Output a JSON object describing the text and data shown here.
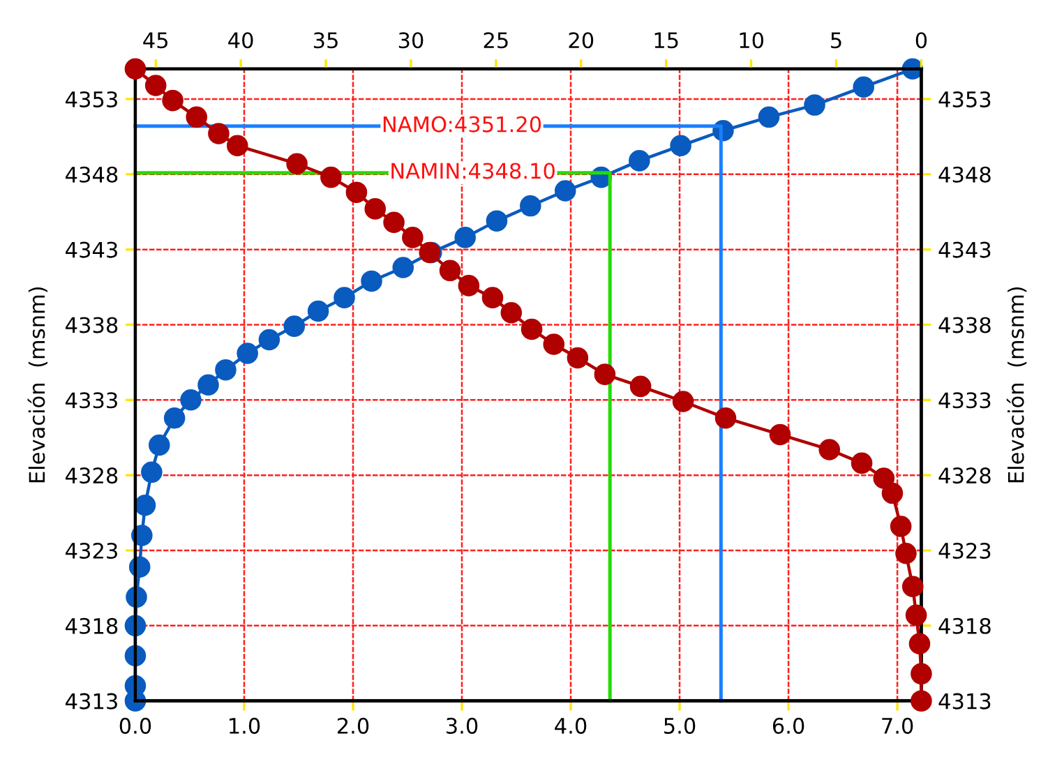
{
  "chart_data": {
    "type": "line",
    "ylabel": "Elevación  (msnm)",
    "y2label": "Elevación  (msnm)",
    "xlim": [
      0,
      7.22
    ],
    "xticks": [
      {
        "value": 0,
        "label": "0.0"
      },
      {
        "value": 1,
        "label": "1.0"
      },
      {
        "value": 2,
        "label": "2.0"
      },
      {
        "value": 3,
        "label": "3.0"
      },
      {
        "value": 4,
        "label": "4.0"
      },
      {
        "value": 5,
        "label": "5.0"
      },
      {
        "value": 6,
        "label": "6.0"
      },
      {
        "value": 7,
        "label": "7.0"
      }
    ],
    "x2lim": [
      46.2,
      0
    ],
    "x2ticks": [
      45,
      40,
      35,
      30,
      25,
      20,
      15,
      10,
      5,
      0
    ],
    "ylim": [
      4313,
      4355
    ],
    "yticks": [
      4313,
      4318,
      4323,
      4328,
      4333,
      4338,
      4343,
      4348,
      4353
    ],
    "y2lim": [
      4313,
      4355
    ],
    "y2ticks": [
      4313,
      4318,
      4323,
      4328,
      4333,
      4338,
      4343,
      4348,
      4353
    ],
    "grid": true,
    "marker": "circle",
    "line_style": "solid",
    "series": [
      {
        "color": "#0a5bbf",
        "x": [
          7.14,
          6.69,
          6.24,
          5.82,
          5.4,
          5.01,
          4.63,
          4.28,
          3.95,
          3.63,
          3.32,
          3.03,
          2.72,
          2.46,
          2.17,
          1.92,
          1.68,
          1.46,
          1.23,
          1.03,
          0.83,
          0.67,
          0.51,
          0.36,
          0.22,
          0.15,
          0.09,
          0.06,
          0.04,
          0.01,
          0,
          0,
          0,
          0
        ],
        "values": [
          4355,
          4353.8,
          4352.6,
          4351.8,
          4350.9,
          4349.9,
          4348.9,
          4347.8,
          4346.9,
          4345.9,
          4344.9,
          4343.8,
          4342.8,
          4341.8,
          4340.9,
          4339.8,
          4338.9,
          4337.9,
          4337,
          4336.1,
          4335,
          4334,
          4333,
          4331.8,
          4330,
          4328.2,
          4326,
          4324,
          4321.9,
          4319.9,
          4318,
          4316,
          4314,
          4313
        ]
      },
      {
        "color": "#b00000",
        "axis": "x2",
        "x": [
          46.2,
          45,
          44,
          42.6,
          41.3,
          40.2,
          36.7,
          34.7,
          33.2,
          32.1,
          31,
          29.9,
          28.9,
          27.7,
          26.6,
          25.2,
          24.1,
          22.9,
          21.6,
          20.2,
          18.6,
          16.5,
          14,
          11.5,
          8.3,
          5.4,
          3.5,
          2.2,
          1.7,
          1.2,
          0.9,
          0.5,
          0.3,
          0.1,
          0,
          0
        ],
        "values": [
          4355,
          4353.9,
          4352.9,
          4351.8,
          4350.7,
          4349.9,
          4348.7,
          4347.8,
          4346.8,
          4345.7,
          4344.8,
          4343.8,
          4342.8,
          4341.6,
          4340.6,
          4339.8,
          4338.8,
          4337.7,
          4336.7,
          4335.8,
          4334.7,
          4333.9,
          4332.9,
          4331.8,
          4330.7,
          4329.7,
          4328.8,
          4327.8,
          4326.8,
          4324.6,
          4322.8,
          4320.6,
          4318.7,
          4316.8,
          4314.8,
          4313
        ]
      },
      {
        "color": "#1a7fff",
        "marker": "none",
        "x": [
          0,
          5.38,
          5.38
        ],
        "values": [
          4351.2,
          4351.2,
          4313
        ]
      },
      {
        "color": "#22dd00",
        "marker": "none",
        "x": [
          0,
          4.36,
          4.36
        ],
        "values": [
          4348.1,
          4348.1,
          4313
        ]
      }
    ],
    "annotations": [
      {
        "text": "NAMO:4351.20",
        "x": 3.0,
        "y": 4351.2
      },
      {
        "text": "NAMIN:4348.10",
        "x": 3.1,
        "y": 4348.1
      }
    ]
  }
}
